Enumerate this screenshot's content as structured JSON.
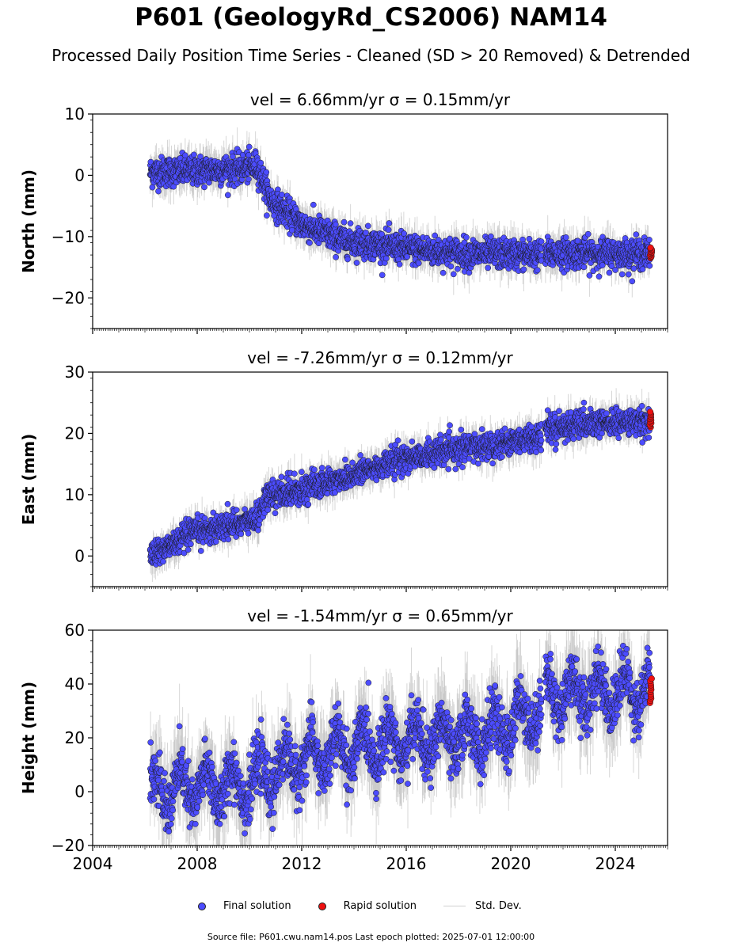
{
  "title": "P601 (GeologyRd_CS2006) NAM14",
  "subtitle": "Processed Daily Position Time Series - Cleaned (SD > 20 Removed) & Detrended",
  "colors": {
    "final": "#4c4cff",
    "rapid": "#ee1111",
    "stddev": "#bdbdbd",
    "edge": "#1a1a1a"
  },
  "legend": {
    "final": "Final solution",
    "rapid": "Rapid solution",
    "std": "Std. Dev."
  },
  "footer": "Source file: P601.cwu.nam14.pos  Last epoch plotted: 2025-07-01 12:00:00",
  "chart_data": [
    {
      "type": "scatter",
      "title": "vel = 6.66mm/yr   σ = 0.15mm/yr",
      "ylabel": "North (mm)",
      "xlim": [
        2004.0,
        2026.0
      ],
      "ylim": [
        -25,
        10
      ],
      "yticks": [
        -20,
        -10,
        0,
        10
      ],
      "ytick_labels": [
        "−20",
        "−10",
        "0",
        "10"
      ],
      "trend": [
        [
          2006.2,
          0.5
        ],
        [
          2009.5,
          1.0
        ],
        [
          2010.3,
          1.5
        ],
        [
          2010.8,
          -4
        ],
        [
          2012.0,
          -8
        ],
        [
          2013.5,
          -10.5
        ],
        [
          2016.0,
          -12
        ],
        [
          2018.0,
          -12.7
        ],
        [
          2021.2,
          -13
        ],
        [
          2021.5,
          -12.7
        ],
        [
          2025.4,
          -12.8
        ]
      ],
      "noise": 1.2,
      "rapid_range": [
        -13.5,
        -11.8
      ]
    },
    {
      "type": "scatter",
      "title": "vel = -7.26mm/yr   σ = 0.12mm/yr",
      "ylabel": "East (mm)",
      "xlim": [
        2004.0,
        2026.0
      ],
      "ylim": [
        -5,
        30
      ],
      "yticks": [
        0,
        10,
        20,
        30
      ],
      "ytick_labels": [
        "0",
        "10",
        "20",
        "30"
      ],
      "trend": [
        [
          2006.2,
          0
        ],
        [
          2008.0,
          4
        ],
        [
          2010.3,
          6
        ],
        [
          2010.6,
          9.5
        ],
        [
          2013.0,
          12
        ],
        [
          2016.0,
          16
        ],
        [
          2019.0,
          18
        ],
        [
          2021.2,
          19.5
        ],
        [
          2021.3,
          21
        ],
        [
          2025.4,
          22
        ]
      ],
      "noise": 1.1,
      "rapid_range": [
        21,
        23.5
      ]
    },
    {
      "type": "scatter",
      "title": "vel = -1.54mm/yr   σ = 0.65mm/yr",
      "ylabel": "Height (mm)",
      "xlim": [
        2004.0,
        2026.0
      ],
      "ylim": [
        -20,
        60
      ],
      "yticks": [
        -20,
        0,
        20,
        40,
        60
      ],
      "ytick_labels": [
        "−20",
        "0",
        "20",
        "40",
        "60"
      ],
      "trend": [
        [
          2006.2,
          0
        ],
        [
          2010.0,
          3
        ],
        [
          2012.0,
          12
        ],
        [
          2015.0,
          18
        ],
        [
          2018.0,
          20
        ],
        [
          2019.5,
          22
        ],
        [
          2021.2,
          32
        ],
        [
          2021.3,
          36
        ],
        [
          2025.4,
          38
        ]
      ],
      "noise": 5,
      "seasonal": 7,
      "rapid_range": [
        33,
        42
      ]
    }
  ],
  "xaxis": {
    "ticks": [
      2004,
      2008,
      2012,
      2016,
      2020,
      2024
    ],
    "tick_labels": [
      "2004",
      "2008",
      "2012",
      "2016",
      "2020",
      "2024"
    ]
  }
}
